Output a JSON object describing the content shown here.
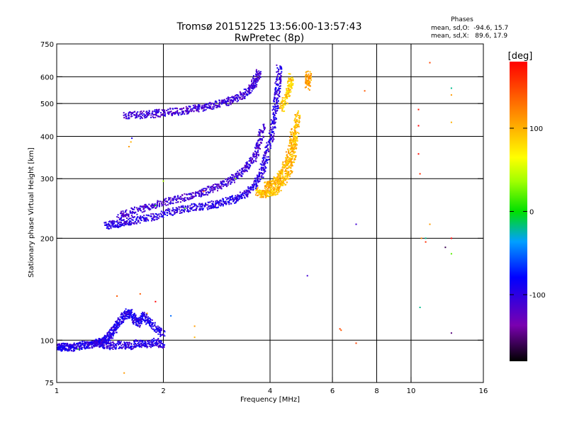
{
  "chart_data": {
    "type": "scatter",
    "title": "Tromsø 20151225 13:56:00-13:57:43",
    "subtitle": "RwPretec (8p)",
    "xlabel": "Frequency [MHz]",
    "ylabel": "Stationary phase Virtual Height [km]",
    "x_scale": "log",
    "y_scale": "log",
    "xlim": [
      1,
      16
    ],
    "ylim": [
      75,
      750
    ],
    "x_ticks": [
      1,
      2,
      4,
      6,
      8,
      10,
      16
    ],
    "x_tick_labels": [
      "1",
      "2",
      "4",
      "6",
      "8",
      "10",
      "16"
    ],
    "y_ticks": [
      75,
      100,
      200,
      300,
      400,
      500,
      600,
      750
    ],
    "y_tick_labels": [
      "75",
      "100",
      "200",
      "300",
      "400",
      "500",
      "600",
      "750"
    ],
    "x_grid": [
      2,
      4,
      6,
      8,
      10
    ],
    "y_grid": [
      100,
      200,
      300,
      400,
      500,
      600
    ],
    "phases_box": {
      "title": "Phases",
      "line_o": "mean, sd,O:  -94.6, 15.7",
      "line_x": "mean, sd,X:   89.6, 17.9"
    },
    "colorbar": {
      "label": "[deg]",
      "range": [
        -180,
        180
      ],
      "ticks": [
        100,
        0,
        -100
      ],
      "tick_labels": [
        "100",
        "0",
        "-100"
      ]
    },
    "traces": [
      {
        "points": [
          [
            1.0,
            96
          ],
          [
            1.03,
            95
          ],
          [
            1.06,
            96
          ],
          [
            1.1,
            95
          ],
          [
            1.15,
            96
          ],
          [
            1.2,
            97
          ],
          [
            1.25,
            97
          ],
          [
            1.3,
            98
          ],
          [
            1.34,
            99
          ],
          [
            1.38,
            101
          ],
          [
            1.42,
            104
          ],
          [
            1.46,
            108
          ],
          [
            1.5,
            113
          ],
          [
            1.55,
            118
          ],
          [
            1.6,
            121
          ],
          [
            1.65,
            116
          ],
          [
            1.7,
            112
          ],
          [
            1.75,
            118
          ],
          [
            1.8,
            115
          ],
          [
            1.9,
            108
          ],
          [
            2.0,
            104
          ]
        ],
        "phase": -95
      },
      {
        "points": [
          [
            1.28,
            98
          ],
          [
            1.35,
            97
          ],
          [
            1.4,
            96
          ],
          [
            1.5,
            97
          ],
          [
            1.6,
            96
          ],
          [
            1.7,
            98
          ],
          [
            1.8,
            97
          ],
          [
            1.9,
            99
          ],
          [
            2.0,
            96
          ]
        ],
        "phase": -100
      },
      {
        "points": [
          [
            1.38,
            218
          ],
          [
            1.45,
            220
          ],
          [
            1.55,
            222
          ],
          [
            1.65,
            226
          ],
          [
            1.8,
            230
          ],
          [
            2.0,
            236
          ],
          [
            2.2,
            242
          ],
          [
            2.4,
            246
          ],
          [
            2.6,
            249
          ],
          [
            2.8,
            252
          ],
          [
            3.0,
            256
          ],
          [
            3.2,
            262
          ],
          [
            3.4,
            270
          ],
          [
            3.6,
            284
          ],
          [
            3.75,
            305
          ],
          [
            3.85,
            330
          ],
          [
            3.95,
            365
          ],
          [
            4.05,
            410
          ],
          [
            4.12,
            460
          ],
          [
            4.18,
            520
          ],
          [
            4.22,
            580
          ],
          [
            4.25,
            640
          ]
        ],
        "phase": -100
      },
      {
        "points": [
          [
            1.5,
            232
          ],
          [
            1.6,
            238
          ],
          [
            1.75,
            245
          ],
          [
            1.9,
            252
          ],
          [
            2.1,
            258
          ],
          [
            2.3,
            264
          ],
          [
            2.5,
            270
          ],
          [
            2.7,
            278
          ],
          [
            2.9,
            286
          ],
          [
            3.1,
            296
          ],
          [
            3.3,
            310
          ],
          [
            3.5,
            330
          ],
          [
            3.65,
            355
          ],
          [
            3.75,
            390
          ],
          [
            3.82,
            430
          ]
        ],
        "phase": -110
      },
      {
        "points": [
          [
            1.55,
            462
          ],
          [
            1.7,
            462
          ],
          [
            1.85,
            465
          ],
          [
            2.0,
            470
          ],
          [
            2.2,
            474
          ],
          [
            2.4,
            480
          ],
          [
            2.6,
            487
          ],
          [
            2.8,
            495
          ],
          [
            3.0,
            505
          ],
          [
            3.2,
            518
          ],
          [
            3.4,
            535
          ],
          [
            3.55,
            555
          ],
          [
            3.65,
            585
          ],
          [
            3.72,
            620
          ]
        ],
        "phase": -110
      },
      {
        "points": [
          [
            3.7,
            275
          ],
          [
            3.8,
            270
          ],
          [
            3.95,
            270
          ],
          [
            4.1,
            274
          ],
          [
            4.25,
            283
          ],
          [
            4.4,
            298
          ],
          [
            4.55,
            320
          ],
          [
            4.65,
            350
          ],
          [
            4.72,
            390
          ],
          [
            4.76,
            430
          ],
          [
            4.78,
            470
          ]
        ],
        "phase": 95
      },
      {
        "points": [
          [
            3.9,
            285
          ],
          [
            4.05,
            290
          ],
          [
            4.2,
            300
          ],
          [
            4.35,
            318
          ],
          [
            4.5,
            345
          ],
          [
            4.6,
            380
          ],
          [
            4.67,
            420
          ]
        ],
        "phase": 100
      },
      {
        "points": [
          [
            4.3,
            480
          ],
          [
            4.45,
            520
          ],
          [
            4.55,
            560
          ],
          [
            4.6,
            600
          ]
        ],
        "phase": 90
      },
      {
        "points": [
          [
            5.1,
            560
          ],
          [
            5.12,
            590
          ],
          [
            5.15,
            610
          ]
        ],
        "phase": 110
      }
    ],
    "scatter_points": [
      {
        "x": 6.3,
        "y": 108,
        "phase": 150
      },
      {
        "x": 6.35,
        "y": 107,
        "phase": 140
      },
      {
        "x": 7.0,
        "y": 98,
        "phase": 150
      },
      {
        "x": 7.4,
        "y": 545,
        "phase": 140
      },
      {
        "x": 7.0,
        "y": 220,
        "phase": -110
      },
      {
        "x": 5.1,
        "y": 155,
        "phase": -110
      },
      {
        "x": 10.5,
        "y": 480,
        "phase": 170
      },
      {
        "x": 10.5,
        "y": 430,
        "phase": 180
      },
      {
        "x": 10.5,
        "y": 355,
        "phase": 175
      },
      {
        "x": 10.6,
        "y": 310,
        "phase": 160
      },
      {
        "x": 10.7,
        "y": 200,
        "phase": 120
      },
      {
        "x": 11.0,
        "y": 200,
        "phase": -20
      },
      {
        "x": 11.3,
        "y": 660,
        "phase": 150
      },
      {
        "x": 11.3,
        "y": 220,
        "phase": 110
      },
      {
        "x": 11.0,
        "y": 195,
        "phase": 160
      },
      {
        "x": 12.5,
        "y": 188,
        "phase": -160
      },
      {
        "x": 13.0,
        "y": 555,
        "phase": -20
      },
      {
        "x": 13.0,
        "y": 530,
        "phase": 110
      },
      {
        "x": 13.0,
        "y": 440,
        "phase": 100
      },
      {
        "x": 13.0,
        "y": 200,
        "phase": 180
      },
      {
        "x": 13.0,
        "y": 180,
        "phase": 20
      },
      {
        "x": 13.0,
        "y": 105,
        "phase": -150
      },
      {
        "x": 10.6,
        "y": 125,
        "phase": -20
      },
      {
        "x": 1.62,
        "y": 385,
        "phase": 100
      },
      {
        "x": 1.6,
        "y": 373,
        "phase": 110
      },
      {
        "x": 1.63,
        "y": 395,
        "phase": -90
      },
      {
        "x": 1.48,
        "y": 135,
        "phase": 140
      },
      {
        "x": 1.72,
        "y": 137,
        "phase": 140
      },
      {
        "x": 1.9,
        "y": 130,
        "phase": 180
      },
      {
        "x": 2.45,
        "y": 110,
        "phase": 110
      },
      {
        "x": 2.45,
        "y": 102,
        "phase": 100
      },
      {
        "x": 1.55,
        "y": 80,
        "phase": 110
      },
      {
        "x": 1.15,
        "y": 94,
        "phase": 20
      },
      {
        "x": 2.3,
        "y": 245,
        "phase": 20
      },
      {
        "x": 2.6,
        "y": 275,
        "phase": 150
      },
      {
        "x": 1.9,
        "y": 250,
        "phase": 0
      },
      {
        "x": 2.0,
        "y": 295,
        "phase": 40
      },
      {
        "x": 3.2,
        "y": 300,
        "phase": 30
      },
      {
        "x": 2.1,
        "y": 118,
        "phase": -50
      },
      {
        "x": 1.8,
        "y": 120,
        "phase": 110
      }
    ]
  }
}
